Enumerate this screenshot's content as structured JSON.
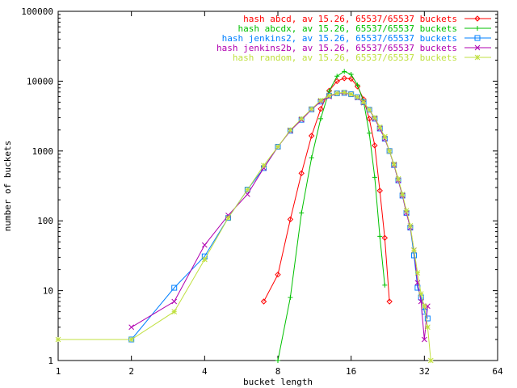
{
  "chart_data": {
    "type": "line",
    "title": "",
    "xlabel": "bucket length",
    "ylabel": "number of buckets",
    "xscale": "log2",
    "yscale": "log10",
    "xlim": [
      1,
      64
    ],
    "ylim": [
      1,
      100000
    ],
    "x_ticks": [
      1,
      2,
      4,
      8,
      16,
      32,
      64
    ],
    "x_tick_labels": [
      "1",
      "2",
      "4",
      "8",
      "16",
      "32",
      "64"
    ],
    "y_ticks": [
      1,
      10,
      100,
      1000,
      10000,
      100000
    ],
    "y_tick_labels": [
      "1",
      "10",
      "100",
      "1000",
      "10000",
      "100000"
    ],
    "grid": false,
    "legend_position": "top-right",
    "series": [
      {
        "name": "hash abcd, av 15.26, 65537/65537 buckets",
        "color": "#ff0000",
        "marker": "diamond",
        "x": [
          7,
          8,
          9,
          10,
          11,
          12,
          13,
          14,
          15,
          16,
          17,
          18,
          19,
          20,
          21,
          22,
          23
        ],
        "y": [
          7,
          17,
          105,
          480,
          1650,
          4000,
          7300,
          10000,
          11000,
          10800,
          8400,
          5500,
          2900,
          1200,
          270,
          57,
          7
        ]
      },
      {
        "name": "hash abcdx, av 15.26, 65537/65537 buckets",
        "color": "#00c000",
        "marker": "plus",
        "x": [
          8,
          9,
          10,
          11,
          12,
          13,
          14,
          15,
          16,
          17,
          18,
          19,
          20,
          21,
          22
        ],
        "y": [
          1,
          8,
          130,
          800,
          2900,
          7200,
          11800,
          13800,
          12500,
          8800,
          5100,
          1800,
          420,
          60,
          12
        ]
      },
      {
        "name": "hash jenkins2, av 15.26, 65537/65537 buckets",
        "color": "#0080ff",
        "marker": "square",
        "x": [
          2,
          3,
          4,
          5,
          6,
          7,
          8,
          9,
          10,
          11,
          12,
          13,
          14,
          15,
          16,
          17,
          18,
          19,
          20,
          21,
          22,
          23,
          24,
          25,
          26,
          27,
          28,
          29,
          30,
          31,
          32,
          33
        ],
        "y": [
          2,
          11,
          31,
          110,
          280,
          570,
          1150,
          1950,
          2800,
          3950,
          5100,
          6200,
          6700,
          6800,
          6500,
          5900,
          5000,
          3900,
          2900,
          2100,
          1500,
          1000,
          630,
          380,
          230,
          130,
          80,
          32,
          11,
          8,
          5,
          4
        ]
      },
      {
        "name": "hash jenkins2b, av 15.26, 65537/65537 buckets",
        "color": "#b000b0",
        "marker": "cross",
        "x": [
          2,
          3,
          4,
          5,
          6,
          7,
          8,
          9,
          10,
          11,
          12,
          13,
          14,
          15,
          16,
          17,
          18,
          19,
          20,
          21,
          22,
          23,
          24,
          25,
          26,
          27,
          28,
          29,
          30,
          31,
          32,
          33
        ],
        "y": [
          3,
          7,
          45,
          120,
          240,
          570,
          1150,
          1950,
          2800,
          3950,
          5100,
          6000,
          6700,
          6800,
          6500,
          5800,
          4900,
          3900,
          2900,
          2100,
          1500,
          1000,
          630,
          380,
          230,
          130,
          80,
          38,
          13,
          7,
          2,
          6
        ]
      },
      {
        "name": "hash random, av 15.26, 65537/65537 buckets",
        "color": "#c0e040",
        "marker": "star",
        "x": [
          1,
          2,
          3,
          4,
          5,
          6,
          7,
          8,
          9,
          10,
          11,
          12,
          13,
          14,
          15,
          16,
          17,
          18,
          19,
          20,
          21,
          22,
          23,
          24,
          25,
          26,
          27,
          28,
          29,
          30,
          31,
          32,
          33,
          34
        ],
        "y": [
          2,
          2,
          5,
          28,
          110,
          280,
          620,
          1150,
          2000,
          2900,
          4000,
          5300,
          6200,
          6700,
          6900,
          6500,
          5900,
          5000,
          3900,
          3000,
          2200,
          1600,
          1000,
          650,
          400,
          240,
          140,
          85,
          38,
          18,
          9,
          6,
          3,
          1
        ]
      }
    ]
  }
}
